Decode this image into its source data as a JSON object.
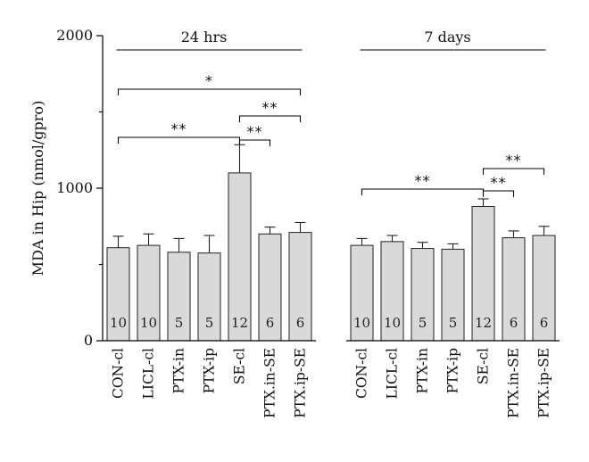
{
  "chart_data": {
    "type": "bar",
    "title": "",
    "xlabel": "",
    "ylabel": "MDA in Hip (nmol/gpro)",
    "ylim": [
      0,
      2000
    ],
    "yticks": [
      "0",
      "1000",
      "2000"
    ],
    "grid": false,
    "groups": [
      {
        "label": "24 hrs",
        "categories": [
          "CON-cl",
          "LICL-cl",
          "PTX-in",
          "PTX-ip",
          "SE-cl",
          "PTX.in-SE",
          "PTX.ip-SE"
        ],
        "values": [
          610,
          625,
          580,
          575,
          1100,
          700,
          710
        ],
        "errors": [
          75,
          75,
          90,
          115,
          185,
          45,
          65
        ],
        "n": [
          "10",
          "10",
          "5",
          "5",
          "12",
          "6",
          "6"
        ],
        "significance": [
          {
            "from": 0,
            "to": 4,
            "label": "**"
          },
          {
            "from": 4,
            "to": 5,
            "label": "**"
          },
          {
            "from": 4,
            "to": 6,
            "label": "**"
          },
          {
            "from": 0,
            "to": 6,
            "label": "*"
          }
        ]
      },
      {
        "label": "7 days",
        "categories": [
          "CON-cl",
          "LICL-cl",
          "PTX-in",
          "PTX-ip",
          "SE-cl",
          "PTX.in-SE",
          "PTX.ip-SE"
        ],
        "values": [
          625,
          650,
          605,
          600,
          880,
          675,
          690
        ],
        "errors": [
          45,
          40,
          40,
          35,
          50,
          45,
          60
        ],
        "n": [
          "10",
          "10",
          "5",
          "5",
          "12",
          "6",
          "6"
        ],
        "significance": [
          {
            "from": 0,
            "to": 4,
            "label": "**"
          },
          {
            "from": 4,
            "to": 5,
            "label": "**"
          },
          {
            "from": 4,
            "to": 6,
            "label": "**"
          }
        ]
      }
    ]
  }
}
